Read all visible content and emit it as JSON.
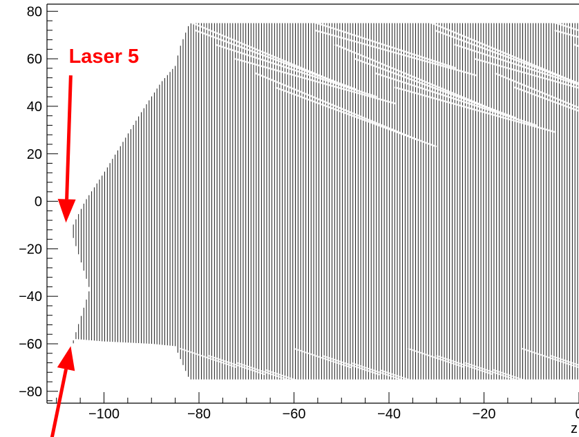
{
  "chart_data": {
    "type": "scatter",
    "title": "",
    "xlabel": "z",
    "ylabel": "",
    "xlim": [
      -112,
      0
    ],
    "ylim": [
      -85,
      83
    ],
    "x_ticks": [
      -100,
      -80,
      -60,
      -40,
      -20,
      0
    ],
    "x_tick_labels": [
      "−100",
      "−80",
      "−60",
      "−40",
      "−20",
      "0"
    ],
    "y_ticks": [
      80,
      60,
      40,
      20,
      0,
      -20,
      -40,
      -60,
      -80
    ],
    "y_tick_labels": [
      "80",
      "60",
      "40",
      "20",
      "0",
      "−20",
      "−40",
      "−60",
      "−80"
    ],
    "grid": false,
    "legend": "none",
    "series": [
      {
        "marker_color": "#000000",
        "envelope": {
          "description_free": true,
          "upper": [
            [
              -107,
              -12
            ],
            [
              -104,
              0
            ],
            [
              -100,
              12
            ],
            [
              -96,
              25
            ],
            [
              -92,
              38
            ],
            [
              -88,
              50
            ],
            [
              -85,
              57
            ],
            [
              -84,
              65
            ],
            [
              -82,
              75
            ],
            [
              0,
              75
            ]
          ],
          "lower": [
            [
              -107,
              -62
            ],
            [
              -106,
              -58
            ],
            [
              -100,
              -59
            ],
            [
              -90,
              -60
            ],
            [
              -85,
              -61
            ],
            [
              -84,
              -66
            ],
            [
              -82,
              -75
            ],
            [
              0,
              -75
            ]
          ],
          "notch_tip": [
            -103,
            -37
          ]
        },
        "column_spacing": 0.55
      }
    ],
    "annotations": [
      {
        "text": "Laser 5",
        "color": "#ff0000",
        "arrow_from": [
          -107,
          53
        ],
        "arrow_to": [
          -108,
          -9
        ]
      },
      {
        "text": "",
        "color": "#ff0000",
        "arrow_from": [
          -111,
          -100
        ],
        "arrow_to": [
          -107,
          -61
        ]
      }
    ]
  }
}
